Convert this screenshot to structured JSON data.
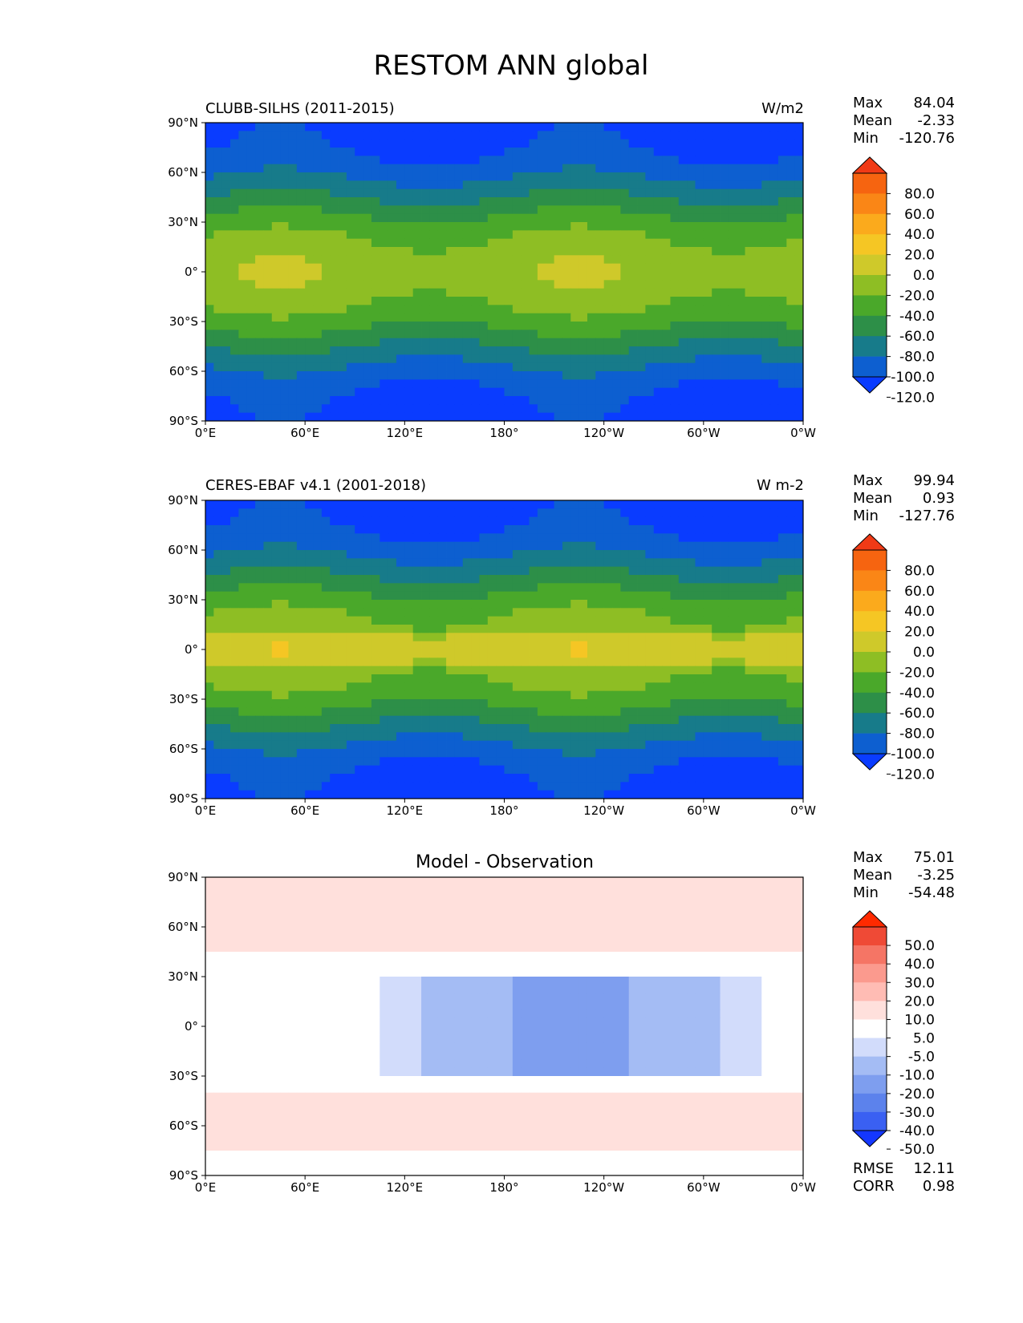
{
  "title": "RESTOM ANN global",
  "chart_data": [
    {
      "type": "heatmap",
      "title": "CLUBB-SILHS (2011-2015)",
      "units": "W/m2",
      "stats": {
        "max_label": "Max",
        "max": "84.04",
        "mean_label": "Mean",
        "mean": "-2.33",
        "min_label": "Min",
        "min": "-120.76"
      },
      "xticks": [
        "0°E",
        "60°E",
        "120°E",
        "180°",
        "120°W",
        "60°W",
        "0°W"
      ],
      "yticks": [
        "90°N",
        "60°N",
        "30°N",
        "0°",
        "30°S",
        "60°S",
        "90°S"
      ],
      "xlim": [
        0,
        360
      ],
      "ylim": [
        -90,
        90
      ],
      "colorbar": {
        "levels": [
          "80.0",
          "60.0",
          "40.0",
          "20.0",
          "0.0",
          "-20.0",
          "-40.0",
          "-60.0",
          "-80.0",
          "-100.0",
          "-120.0"
        ]
      },
      "description_values": {
        "tropical_peak": 84.04,
        "polar_min": -120.76
      }
    },
    {
      "type": "heatmap",
      "title": "CERES-EBAF v4.1 (2001-2018)",
      "units": "W m-2",
      "stats": {
        "max_label": "Max",
        "max": "99.94",
        "mean_label": "Mean",
        "mean": "0.93",
        "min_label": "Min",
        "min": "-127.76"
      },
      "xticks": [
        "0°E",
        "60°E",
        "120°E",
        "180°",
        "120°W",
        "60°W",
        "0°W"
      ],
      "yticks": [
        "90°N",
        "60°N",
        "30°N",
        "0°",
        "30°S",
        "60°S",
        "90°S"
      ],
      "xlim": [
        0,
        360
      ],
      "ylim": [
        -90,
        90
      ],
      "colorbar": {
        "levels": [
          "80.0",
          "60.0",
          "40.0",
          "20.0",
          "0.0",
          "-20.0",
          "-40.0",
          "-60.0",
          "-80.0",
          "-100.0",
          "-120.0"
        ]
      },
      "description_values": {
        "tropical_peak": 99.94,
        "polar_min": -127.76
      }
    },
    {
      "type": "heatmap",
      "title": "Model - Observation",
      "stats": {
        "max_label": "Max",
        "max": "75.01",
        "mean_label": "Mean",
        "mean": "-3.25",
        "min_label": "Min",
        "min": "-54.48",
        "rmse_label": "RMSE",
        "rmse": "12.11",
        "corr_label": "CORR",
        "corr": "0.98"
      },
      "xticks": [
        "0°E",
        "60°E",
        "120°E",
        "180°",
        "120°W",
        "60°W",
        "0°W"
      ],
      "yticks": [
        "90°N",
        "60°N",
        "30°N",
        "0°",
        "30°S",
        "60°S",
        "90°S"
      ],
      "xlim": [
        0,
        360
      ],
      "ylim": [
        -90,
        90
      ],
      "colorbar": {
        "levels": [
          "50.0",
          "40.0",
          "30.0",
          "20.0",
          "10.0",
          "5.0",
          "-5.0",
          "-10.0",
          "-20.0",
          "-30.0",
          "-40.0",
          "-50.0"
        ]
      }
    }
  ],
  "colors": {
    "abs_scale": [
      "#0a3cff",
      "#0d5fd0",
      "#177b8a",
      "#2d8f48",
      "#4aa82a",
      "#8ebe24",
      "#cfc92a",
      "#f5c624",
      "#fbaa1c",
      "#fa8616",
      "#f66410",
      "#f03a16"
    ],
    "diff_scale": [
      "#1437ff",
      "#3a60f2",
      "#5c82ec",
      "#7e9eef",
      "#a4bcf4",
      "#d2dcfb",
      "#ffffff",
      "#ffe0dc",
      "#ffbcb4",
      "#fb9a8e",
      "#f57565",
      "#ef4a36",
      "#ff2a00"
    ]
  }
}
